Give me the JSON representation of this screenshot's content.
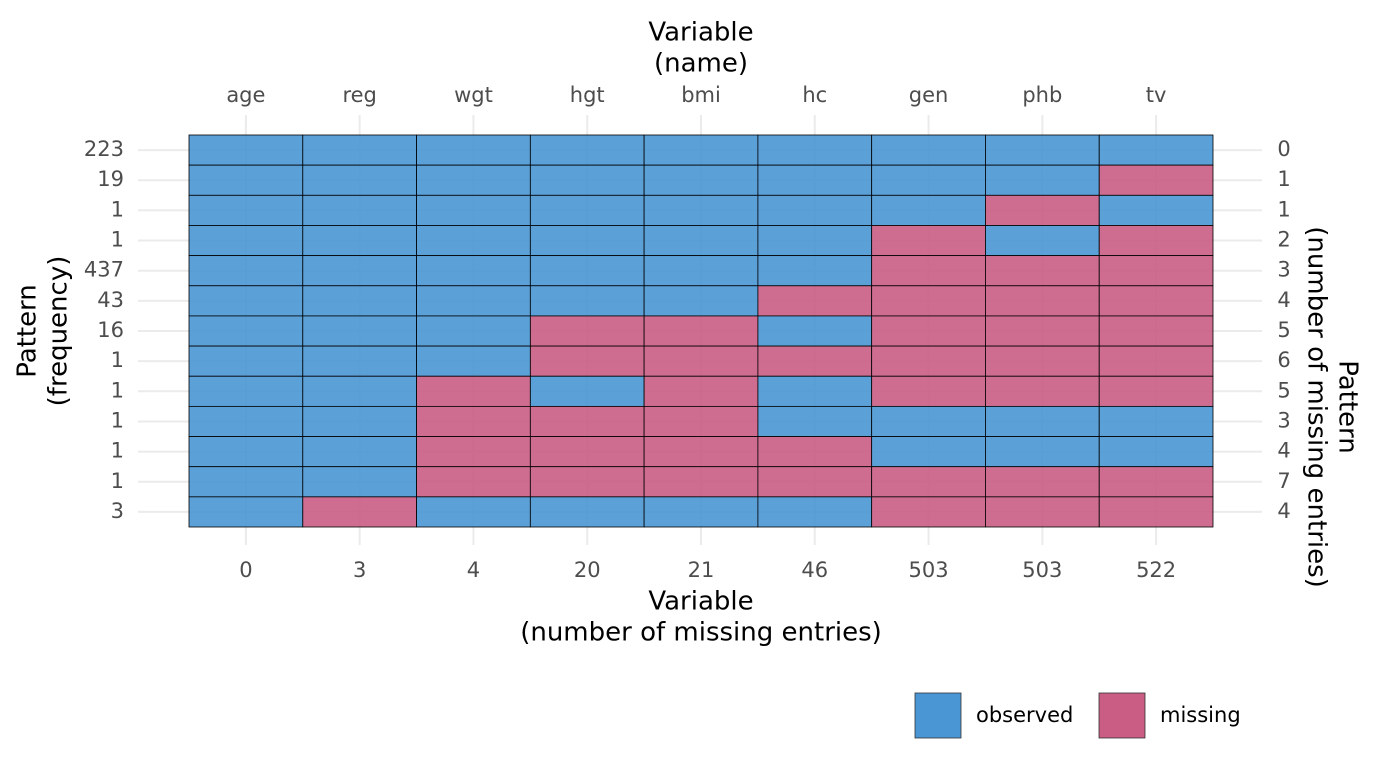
{
  "chart_data": {
    "type": "missing-pattern",
    "x_title_top": [
      "Variable",
      "(name)"
    ],
    "x_title_bottom": [
      "Variable",
      "(number of missing entries)"
    ],
    "y_title_left": [
      "Pattern",
      "(frequency)"
    ],
    "y_title_right": [
      "Pattern",
      "(number of missing entries)"
    ],
    "categories": [
      "age",
      "reg",
      "wgt",
      "hgt",
      "bmi",
      "hc",
      "gen",
      "phb",
      "tv"
    ],
    "missing_counts": [
      0,
      3,
      4,
      20,
      21,
      46,
      503,
      503,
      522
    ],
    "frequencies": [
      223,
      19,
      1,
      1,
      437,
      43,
      16,
      1,
      1,
      1,
      1,
      1,
      3
    ],
    "pattern_missing": [
      0,
      1,
      1,
      2,
      3,
      4,
      5,
      6,
      5,
      3,
      4,
      7,
      4
    ],
    "values": [
      [
        1,
        1,
        1,
        1,
        1,
        1,
        1,
        1,
        1
      ],
      [
        1,
        1,
        1,
        1,
        1,
        1,
        1,
        1,
        0
      ],
      [
        1,
        1,
        1,
        1,
        1,
        1,
        1,
        0,
        1
      ],
      [
        1,
        1,
        1,
        1,
        1,
        1,
        0,
        1,
        0
      ],
      [
        1,
        1,
        1,
        1,
        1,
        1,
        0,
        0,
        0
      ],
      [
        1,
        1,
        1,
        1,
        1,
        0,
        0,
        0,
        0
      ],
      [
        1,
        1,
        1,
        0,
        0,
        1,
        0,
        0,
        0
      ],
      [
        1,
        1,
        1,
        0,
        0,
        0,
        0,
        0,
        0
      ],
      [
        1,
        1,
        0,
        1,
        0,
        1,
        0,
        0,
        0
      ],
      [
        1,
        1,
        0,
        0,
        0,
        1,
        1,
        1,
        1
      ],
      [
        1,
        1,
        0,
        0,
        0,
        0,
        1,
        1,
        1
      ],
      [
        1,
        1,
        0,
        0,
        0,
        0,
        0,
        0,
        0
      ],
      [
        1,
        0,
        1,
        1,
        1,
        1,
        0,
        0,
        0
      ]
    ],
    "series": [
      {
        "name": "observed",
        "color": "#4a96d4"
      },
      {
        "name": "missing",
        "color": "#c95d84"
      }
    ],
    "grid": true
  }
}
